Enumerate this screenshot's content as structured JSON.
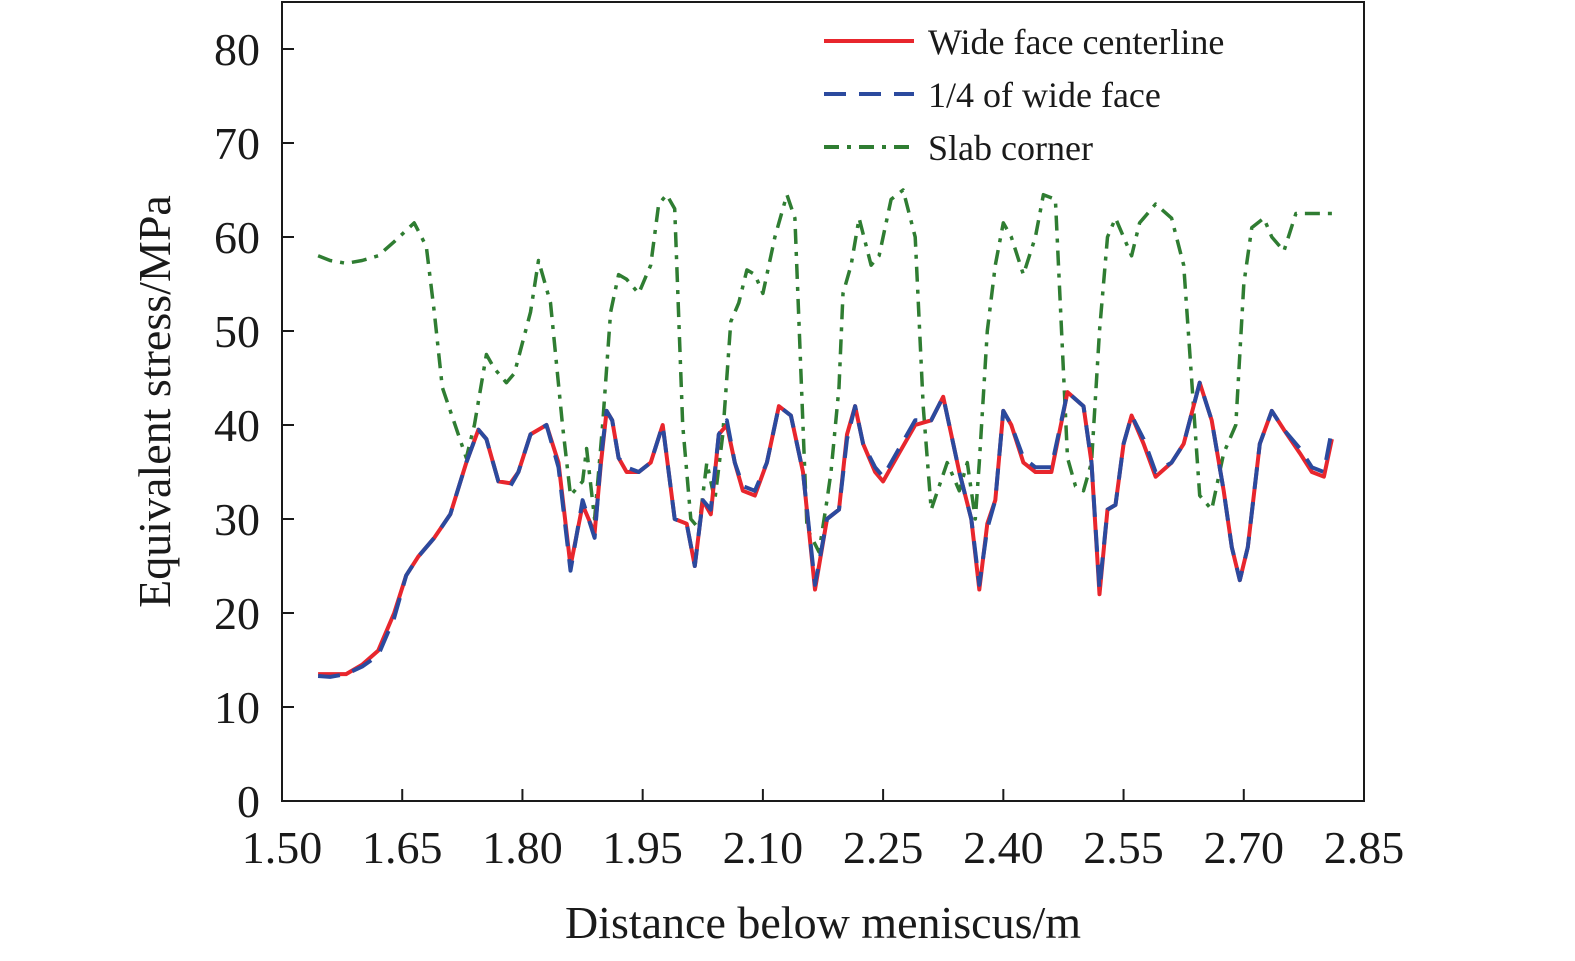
{
  "chart_data": {
    "type": "line",
    "title": "",
    "xlabel": "Distance below meniscus/m",
    "ylabel": "Equivalent stress/MPa",
    "xlim": [
      1.5,
      2.85
    ],
    "ylim": [
      0,
      85
    ],
    "xticks": [
      "1.50",
      "1.65",
      "1.80",
      "1.95",
      "2.10",
      "2.25",
      "2.40",
      "2.55",
      "2.70",
      "2.85"
    ],
    "yticks": [
      "0",
      "10",
      "20",
      "30",
      "40",
      "50",
      "60",
      "70",
      "80"
    ],
    "grid": false,
    "legend_position": "top-right",
    "series": [
      {
        "name": "Wide face centerline",
        "color": "#e8262d",
        "style": "solid",
        "x": [
          1.545,
          1.56,
          1.58,
          1.6,
          1.62,
          1.64,
          1.655,
          1.67,
          1.69,
          1.71,
          1.73,
          1.745,
          1.755,
          1.77,
          1.785,
          1.795,
          1.81,
          1.83,
          1.845,
          1.86,
          1.875,
          1.89,
          1.898,
          1.905,
          1.912,
          1.92,
          1.93,
          1.945,
          1.96,
          1.975,
          1.99,
          2.005,
          2.015,
          2.025,
          2.035,
          2.045,
          2.055,
          2.065,
          2.075,
          2.09,
          2.105,
          2.12,
          2.135,
          2.15,
          2.165,
          2.18,
          2.195,
          2.205,
          2.215,
          2.225,
          2.24,
          2.25,
          2.27,
          2.29,
          2.31,
          2.325,
          2.345,
          2.36,
          2.37,
          2.38,
          2.39,
          2.4,
          2.41,
          2.425,
          2.44,
          2.46,
          2.48,
          2.5,
          2.51,
          2.52,
          2.53,
          2.54,
          2.55,
          2.56,
          2.575,
          2.59,
          2.61,
          2.625,
          2.645,
          2.66,
          2.675,
          2.685,
          2.695,
          2.705,
          2.72,
          2.735,
          2.75,
          2.77,
          2.785,
          2.8,
          2.81
        ],
        "values": [
          13.5,
          13.5,
          13.5,
          14.5,
          16,
          20,
          24,
          26,
          28,
          30.5,
          36,
          39.5,
          38.5,
          34,
          33.8,
          35,
          39,
          40,
          36,
          25,
          31.5,
          28.5,
          36,
          41.5,
          40.5,
          36.5,
          35,
          35,
          36,
          40,
          30,
          29.5,
          25,
          32,
          30.5,
          39,
          40,
          36,
          33,
          32.5,
          36,
          42,
          41,
          35,
          22.5,
          30,
          31,
          39,
          42,
          38,
          35,
          34,
          37,
          40,
          40.5,
          43,
          35,
          30,
          22.5,
          29.5,
          32,
          41.5,
          40,
          36,
          35,
          35,
          43.5,
          42,
          36,
          22,
          31,
          31.5,
          38,
          41,
          38,
          34.5,
          36,
          38,
          44.5,
          40.5,
          33,
          27,
          23.5,
          27,
          38,
          41.5,
          39.5,
          37,
          35,
          34.5,
          38.5
        ]
      },
      {
        "name": "1/4 of wide face",
        "color": "#2b4a9e",
        "style": "dashed",
        "x": [
          1.545,
          1.56,
          1.58,
          1.6,
          1.62,
          1.64,
          1.655,
          1.67,
          1.69,
          1.71,
          1.73,
          1.745,
          1.755,
          1.77,
          1.785,
          1.795,
          1.81,
          1.83,
          1.845,
          1.86,
          1.875,
          1.89,
          1.898,
          1.905,
          1.912,
          1.92,
          1.93,
          1.945,
          1.96,
          1.975,
          1.99,
          2.005,
          2.015,
          2.025,
          2.035,
          2.045,
          2.055,
          2.065,
          2.075,
          2.09,
          2.105,
          2.12,
          2.135,
          2.15,
          2.165,
          2.18,
          2.195,
          2.205,
          2.215,
          2.225,
          2.24,
          2.25,
          2.27,
          2.29,
          2.31,
          2.325,
          2.345,
          2.36,
          2.37,
          2.38,
          2.39,
          2.4,
          2.41,
          2.425,
          2.44,
          2.46,
          2.48,
          2.5,
          2.51,
          2.52,
          2.53,
          2.54,
          2.55,
          2.56,
          2.575,
          2.59,
          2.61,
          2.625,
          2.645,
          2.66,
          2.675,
          2.685,
          2.695,
          2.705,
          2.72,
          2.735,
          2.75,
          2.77,
          2.785,
          2.8,
          2.81
        ],
        "values": [
          13.3,
          13.2,
          13.5,
          14.3,
          15.5,
          19.5,
          24,
          26,
          28,
          30.5,
          36,
          39.5,
          38.5,
          34,
          33.5,
          35,
          39,
          40,
          35.5,
          24.5,
          32,
          28,
          36.5,
          41.5,
          40.5,
          36.5,
          35.5,
          35,
          36,
          40,
          30,
          29.5,
          25,
          32,
          31,
          39,
          40.5,
          36,
          33.5,
          33,
          36,
          42,
          41,
          35,
          23,
          30,
          31,
          38.5,
          42,
          38,
          35.5,
          34.5,
          37.5,
          40.5,
          40.5,
          43,
          35,
          30,
          23,
          29,
          32,
          41.5,
          40,
          36.5,
          35.5,
          35.5,
          43.5,
          42,
          36,
          22.5,
          31,
          31.5,
          38,
          41,
          38.5,
          35,
          36,
          38,
          44.5,
          40.5,
          33,
          27,
          23.5,
          27,
          38,
          41.5,
          39.5,
          37.5,
          35.5,
          35,
          39.5
        ]
      },
      {
        "name": "Slab corner",
        "color": "#2f7d32",
        "style": "dashdot",
        "x": [
          1.545,
          1.56,
          1.58,
          1.6,
          1.62,
          1.64,
          1.665,
          1.68,
          1.69,
          1.7,
          1.71,
          1.73,
          1.74,
          1.755,
          1.765,
          1.78,
          1.79,
          1.81,
          1.82,
          1.835,
          1.85,
          1.86,
          1.875,
          1.88,
          1.89,
          1.9,
          1.91,
          1.92,
          1.93,
          1.945,
          1.96,
          1.97,
          1.98,
          1.99,
          2.0,
          2.01,
          2.02,
          2.03,
          2.04,
          2.05,
          2.06,
          2.07,
          2.08,
          2.09,
          2.1,
          2.115,
          2.13,
          2.14,
          2.155,
          2.17,
          2.18,
          2.185,
          2.195,
          2.2,
          2.21,
          2.22,
          2.235,
          2.245,
          2.26,
          2.275,
          2.29,
          2.3,
          2.31,
          2.33,
          2.345,
          2.355,
          2.365,
          2.37,
          2.38,
          2.39,
          2.4,
          2.41,
          2.425,
          2.44,
          2.45,
          2.465,
          2.48,
          2.49,
          2.5,
          2.51,
          2.52,
          2.53,
          2.54,
          2.55,
          2.56,
          2.57,
          2.59,
          2.61,
          2.625,
          2.645,
          2.66,
          2.675,
          2.69,
          2.7,
          2.71,
          2.725,
          2.735,
          2.75,
          2.765,
          2.78,
          2.79,
          2.81
        ],
        "values": [
          58,
          57.5,
          57.2,
          57.5,
          58,
          59.5,
          61.5,
          59,
          52,
          44,
          41.5,
          36.5,
          40,
          47.5,
          46,
          44.5,
          45.5,
          52,
          57.5,
          53,
          40,
          32.5,
          34,
          37.5,
          30,
          40,
          52,
          56,
          55.5,
          54,
          57,
          63.5,
          64.5,
          63,
          40,
          30,
          29,
          36,
          32,
          39,
          51,
          53,
          56.5,
          56,
          54,
          60,
          64.5,
          62,
          29,
          26.5,
          32,
          35,
          44,
          54,
          57,
          62,
          57,
          58,
          64,
          65,
          60,
          42,
          31,
          36,
          33,
          36,
          30,
          36,
          50,
          57,
          61.5,
          60,
          56,
          60,
          64.5,
          64,
          36.5,
          33.5,
          33,
          36,
          50,
          60,
          62,
          60,
          58,
          61.5,
          63.5,
          62,
          57,
          32.5,
          31,
          37,
          40,
          55,
          61,
          62,
          60,
          58.5,
          62.5,
          62.5,
          62.5,
          62.5
        ]
      }
    ]
  }
}
